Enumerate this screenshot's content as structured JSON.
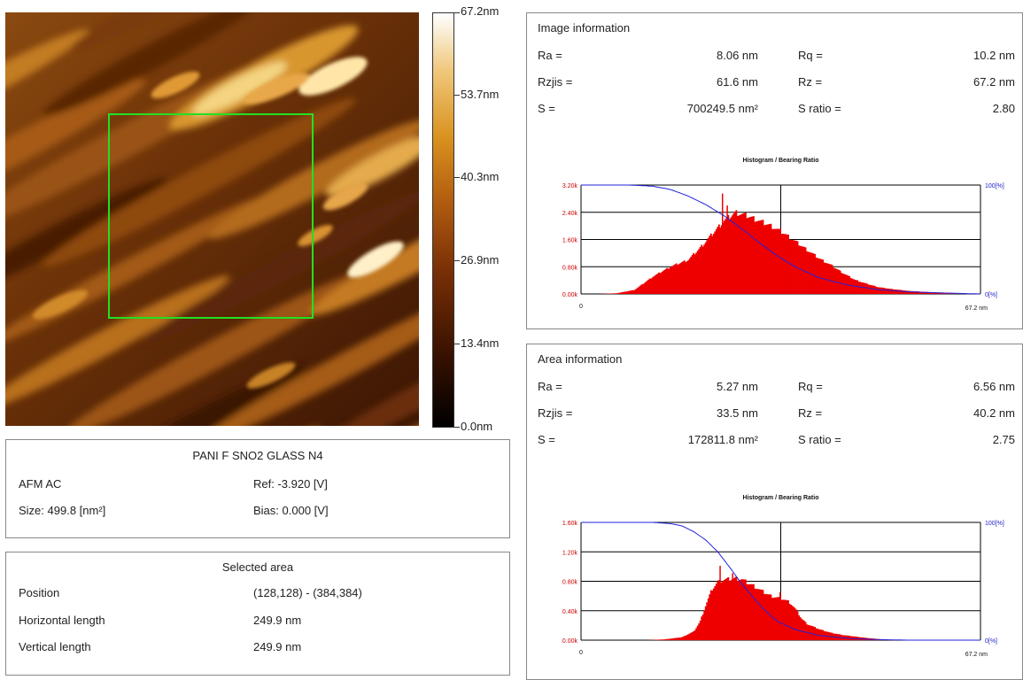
{
  "colors": {
    "selection": "#22e022",
    "histogram_fill": "#ee0000",
    "bearing_curve": "#2222dd",
    "axis_left_labels": "#cc0000",
    "axis_right_labels": "#2222cc"
  },
  "scale": {
    "labels": [
      "67.2nm",
      "53.7nm",
      "40.3nm",
      "26.9nm",
      "13.4nm",
      "0.0nm"
    ],
    "values": [
      67.2,
      53.7,
      40.3,
      26.9,
      13.4,
      0.0
    ]
  },
  "sample": {
    "title": "PANI F SNO2 GLASS N4",
    "mode": "AFM AC",
    "ref": "Ref: -3.920 [V]",
    "size": "Size: 499.8 [nm²]",
    "bias": "Bias: 0.000 [V]"
  },
  "selected_area": {
    "title": "Selected area",
    "rows": [
      {
        "label": "Position",
        "value": "(128,128) - (384,384)"
      },
      {
        "label": "Horizontal length",
        "value": "249.9 nm"
      },
      {
        "label": "Vertical length",
        "value": "249.9 nm"
      }
    ]
  },
  "image_info": {
    "title": "Image information",
    "ra_label": "Ra =",
    "ra_value": "8.06 nm",
    "rq_label": "Rq =",
    "rq_value": "10.2 nm",
    "rzjis_label": "Rzjis =",
    "rzjis_value": "61.6 nm",
    "rz_label": "Rz =",
    "rz_value": "67.2 nm",
    "s_label": "S =",
    "s_value": "700249.5 nm²",
    "sratio_label": "S ratio =",
    "sratio_value": "2.80"
  },
  "area_info": {
    "title": "Area information",
    "ra_label": "Ra =",
    "ra_value": "5.27 nm",
    "rq_label": "Rq =",
    "rq_value": "6.56 nm",
    "rzjis_label": "Rzjis =",
    "rzjis_value": "33.5 nm",
    "rz_label": "Rz =",
    "rz_value": "40.2 nm",
    "s_label": "S =",
    "s_value": "172811.8 nm²",
    "sratio_label": "S ratio =",
    "sratio_value": "2.75"
  },
  "chart_data": [
    {
      "type": "area",
      "title": "Histogram / Bearing Ratio",
      "x_range": [
        0,
        67.2
      ],
      "x_tick_labels": [
        "0",
        "67.2 nm"
      ],
      "y_tick_labels": [
        "3.20k",
        "2.40k",
        "1.60k",
        "0.80k",
        "0.00k"
      ],
      "ylim": [
        0,
        3200
      ],
      "right_tick_labels": [
        "100[%]",
        "0[%]"
      ],
      "series": [
        {
          "kind": "histogram",
          "x": [
            3,
            6,
            9,
            12,
            15,
            18,
            20,
            22,
            24,
            26,
            28,
            30,
            32,
            34,
            36,
            38,
            40,
            42,
            44,
            46,
            48,
            50,
            52,
            55,
            58,
            61,
            64,
            67.2
          ],
          "values": [
            0,
            20,
            120,
            500,
            800,
            1000,
            1350,
            1750,
            2150,
            2400,
            2300,
            2150,
            2000,
            1800,
            1550,
            1300,
            1050,
            850,
            620,
            420,
            300,
            200,
            150,
            90,
            60,
            40,
            20,
            0
          ]
        },
        {
          "kind": "bearing_ratio",
          "x": [
            0,
            8,
            12,
            15,
            18,
            21,
            24,
            27,
            30,
            33,
            36,
            40,
            45,
            50,
            55,
            60,
            67.2
          ],
          "values": [
            100,
            100,
            99,
            96,
            90,
            82,
            72,
            60,
            47,
            35,
            25,
            15,
            8,
            4,
            2,
            1,
            0
          ]
        }
      ],
      "spikes": [
        {
          "x": 23.8,
          "value": 2950
        },
        {
          "x": 24.6,
          "value": 2600
        },
        {
          "x": 34.5,
          "value": 1500
        }
      ]
    },
    {
      "type": "area",
      "title": "Histogram / Bearing Ratio",
      "x_range": [
        0,
        67.2
      ],
      "x_tick_labels": [
        "0",
        "67.2 nm"
      ],
      "y_tick_labels": [
        "1.60k",
        "1.20k",
        "0.80k",
        "0.40k",
        "0.00k"
      ],
      "ylim": [
        0,
        1600
      ],
      "right_tick_labels": [
        "100[%]",
        "0[%]"
      ],
      "series": [
        {
          "kind": "histogram",
          "x": [
            11,
            14,
            17,
            19,
            20,
            21,
            22,
            23,
            24,
            25,
            26,
            27,
            28,
            29,
            30,
            31,
            32,
            33,
            34,
            35,
            36,
            37,
            38,
            40,
            42,
            44,
            46,
            48,
            50,
            52
          ],
          "values": [
            0,
            10,
            40,
            120,
            250,
            480,
            690,
            790,
            820,
            830,
            840,
            830,
            780,
            740,
            690,
            640,
            600,
            580,
            560,
            520,
            430,
            300,
            220,
            150,
            100,
            70,
            50,
            30,
            15,
            0
          ]
        },
        {
          "kind": "bearing_ratio",
          "x": [
            0,
            12,
            15,
            17,
            19,
            21,
            23,
            25,
            27,
            29,
            31,
            33,
            36,
            40,
            45,
            50,
            55,
            67.2
          ],
          "values": [
            100,
            100,
            99,
            97,
            92,
            85,
            75,
            62,
            48,
            36,
            25,
            16,
            9,
            4,
            1.5,
            0.5,
            0,
            0
          ]
        }
      ],
      "spikes": [
        {
          "x": 23.4,
          "value": 1010
        },
        {
          "x": 25.5,
          "value": 910
        },
        {
          "x": 33.5,
          "value": 650
        }
      ]
    }
  ]
}
